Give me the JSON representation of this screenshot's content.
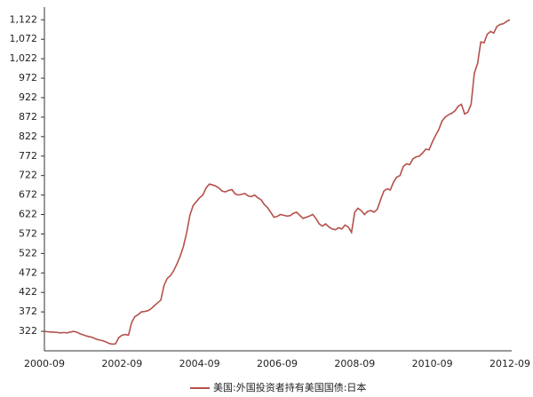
{
  "chart_data": {
    "type": "line",
    "categories": [
      "2000-09",
      null,
      null,
      null,
      null,
      null,
      null,
      null,
      null,
      null,
      null,
      null,
      null,
      null,
      null,
      null,
      null,
      null,
      null,
      null,
      null,
      null,
      null,
      null,
      "2002-09",
      null,
      null,
      null,
      null,
      null,
      null,
      null,
      null,
      null,
      null,
      null,
      null,
      null,
      null,
      null,
      null,
      null,
      null,
      null,
      null,
      null,
      null,
      null,
      "2004-09",
      null,
      null,
      null,
      null,
      null,
      null,
      null,
      null,
      null,
      null,
      null,
      null,
      null,
      null,
      null,
      null,
      null,
      null,
      null,
      null,
      null,
      null,
      null,
      "2006-09",
      null,
      null,
      null,
      null,
      null,
      null,
      null,
      null,
      null,
      null,
      null,
      null,
      null,
      null,
      null,
      null,
      null,
      null,
      null,
      null,
      null,
      null,
      null,
      "2008-09",
      null,
      null,
      null,
      null,
      null,
      null,
      null,
      null,
      null,
      null,
      null,
      null,
      null,
      null,
      null,
      null,
      null,
      null,
      null,
      null,
      null,
      null,
      null,
      "2010-09",
      null,
      null,
      null,
      null,
      null,
      null,
      null,
      null,
      null,
      null,
      null,
      null,
      null,
      null,
      null,
      null,
      null,
      null,
      null,
      null,
      null,
      null,
      null,
      "2012-09"
    ],
    "series": [
      {
        "name": "美国:外国投资者持有美国国债:日本",
        "color": "#b5514b",
        "values": [
          322,
          321,
          320,
          320,
          319,
          318,
          319,
          318,
          320,
          322,
          320,
          316,
          313,
          310,
          308,
          306,
          302,
          300,
          298,
          295,
          291,
          289,
          290,
          306,
          312,
          314,
          312,
          345,
          360,
          365,
          372,
          373,
          375,
          380,
          388,
          395,
          402,
          440,
          458,
          465,
          478,
          495,
          515,
          540,
          575,
          620,
          645,
          655,
          665,
          672,
          690,
          700,
          698,
          695,
          690,
          682,
          680,
          684,
          686,
          675,
          672,
          674,
          676,
          670,
          668,
          672,
          665,
          660,
          648,
          640,
          628,
          615,
          617,
          622,
          620,
          618,
          619,
          625,
          628,
          620,
          612,
          615,
          618,
          622,
          612,
          598,
          592,
          598,
          590,
          585,
          583,
          588,
          585,
          595,
          590,
          576,
          628,
          638,
          632,
          622,
          630,
          632,
          628,
          636,
          660,
          682,
          688,
          685,
          705,
          718,
          722,
          745,
          752,
          750,
          765,
          770,
          772,
          780,
          790,
          788,
          808,
          825,
          840,
          862,
          872,
          878,
          882,
          888,
          900,
          905,
          880,
          885,
          905,
          985,
          1010,
          1065,
          1063,
          1085,
          1092,
          1088,
          1105,
          1110,
          1112,
          1118,
          1122
        ]
      }
    ],
    "ylim": [
      272,
      1150
    ],
    "yticks": [
      322,
      372,
      422,
      472,
      522,
      572,
      622,
      672,
      722,
      772,
      822,
      872,
      922,
      972,
      {
        "value": 1022,
        "label": "1,022"
      },
      {
        "value": 1072,
        "label": "1,072"
      },
      {
        "value": 1122,
        "label": "1,122"
      }
    ],
    "grid": false,
    "legend": "bottom"
  }
}
